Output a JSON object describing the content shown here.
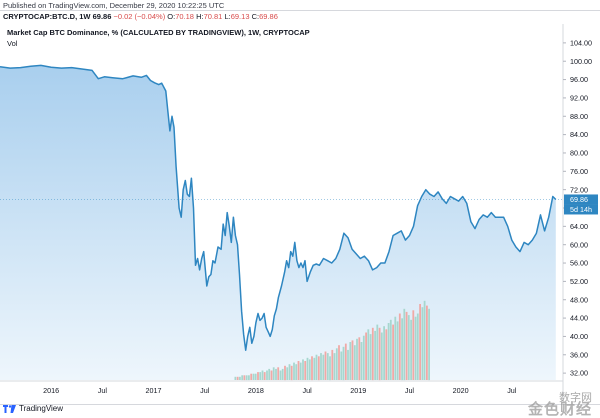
{
  "header": {
    "published": "Published on TradingView.com, December 29, 2020 10:22:25 UTC",
    "symbol": "CRYPTOCAP:BTC.D, 1W",
    "last": "69.86",
    "change": "−0.02 (−0.04%)",
    "o_label": "O:",
    "o_value": "70.18",
    "h_label": "H:",
    "h_value": "70.81",
    "l_label": "L:",
    "l_value": "69.13",
    "c_label": "C:",
    "c_value": "69.86"
  },
  "chart_title": "Market Cap BTC Dominance, % (CALCULATED BY TRADINGVIEW), 1W, CRYPTOCAP",
  "vol_label": "Vol",
  "footer": {
    "brand": "TradingView"
  },
  "watermark": {
    "line1": "数字网",
    "line2": "金色财经"
  },
  "colors": {
    "line": "#2e86c1",
    "fill_top": "#a9cfee",
    "fill_bottom": "#eef6fc",
    "vol_up": "#a7d7cf",
    "vol_down": "#f0a9a6",
    "price_tag": "#2e86c1"
  },
  "chart_data": {
    "type": "area",
    "title": "Market Cap BTC Dominance, % (CALCULATED BY TRADINGVIEW), 1W, CRYPTOCAP",
    "ylabel": "%",
    "ylim": [
      30.5,
      105.5
    ],
    "y_ticks": [
      "104.00",
      "100.00",
      "96.00",
      "92.00",
      "88.00",
      "84.00",
      "80.00",
      "76.00",
      "72.00",
      "68.00",
      "64.00",
      "60.00",
      "56.00",
      "52.00",
      "48.00",
      "44.00",
      "40.00",
      "36.00",
      "32.00"
    ],
    "y_tick_values": [
      104,
      100,
      96,
      92,
      88,
      84,
      80,
      76,
      72,
      68,
      64,
      60,
      56,
      52,
      48,
      44,
      40,
      36,
      32
    ],
    "xlim": [
      2015.5,
      2021.0
    ],
    "x_ticks": [
      {
        "label": "2016",
        "x": 2016.0
      },
      {
        "label": "Jul",
        "x": 2016.5
      },
      {
        "label": "2017",
        "x": 2017.0
      },
      {
        "label": "Jul",
        "x": 2017.5
      },
      {
        "label": "2018",
        "x": 2018.0
      },
      {
        "label": "Jul",
        "x": 2018.5
      },
      {
        "label": "2019",
        "x": 2019.0
      },
      {
        "label": "Jul",
        "x": 2019.5
      },
      {
        "label": "2020",
        "x": 2020.0
      },
      {
        "label": "Jul",
        "x": 2020.5
      }
    ],
    "series": [
      {
        "name": "BTC.D",
        "points": [
          [
            2015.5,
            98.8
          ],
          [
            2015.6,
            98.5
          ],
          [
            2015.7,
            98.6
          ],
          [
            2015.8,
            98.9
          ],
          [
            2015.9,
            99.1
          ],
          [
            2016.0,
            98.7
          ],
          [
            2016.1,
            98.5
          ],
          [
            2016.2,
            98.6
          ],
          [
            2016.3,
            98.3
          ],
          [
            2016.4,
            98.0
          ],
          [
            2016.46,
            96.2
          ],
          [
            2016.52,
            96.6
          ],
          [
            2016.6,
            96.4
          ],
          [
            2016.7,
            96.2
          ],
          [
            2016.8,
            96.8
          ],
          [
            2016.88,
            96.5
          ],
          [
            2016.93,
            96.9
          ],
          [
            2016.97,
            95.8
          ],
          [
            2017.01,
            95.3
          ],
          [
            2017.05,
            94.9
          ],
          [
            2017.08,
            95.2
          ],
          [
            2017.12,
            93.5
          ],
          [
            2017.14,
            89.0
          ],
          [
            2017.16,
            84.8
          ],
          [
            2017.18,
            88.0
          ],
          [
            2017.2,
            85.6
          ],
          [
            2017.22,
            77.0
          ],
          [
            2017.25,
            68.0
          ],
          [
            2017.27,
            66.0
          ],
          [
            2017.29,
            72.0
          ],
          [
            2017.31,
            74.0
          ],
          [
            2017.33,
            71.0
          ],
          [
            2017.35,
            70.5
          ],
          [
            2017.37,
            74.5
          ],
          [
            2017.39,
            68.0
          ],
          [
            2017.41,
            55.5
          ],
          [
            2017.43,
            57.0
          ],
          [
            2017.45,
            54.5
          ],
          [
            2017.47,
            57.0
          ],
          [
            2017.49,
            58.5
          ],
          [
            2017.52,
            51.0
          ],
          [
            2017.54,
            53.0
          ],
          [
            2017.56,
            53.5
          ],
          [
            2017.58,
            56.5
          ],
          [
            2017.6,
            56.0
          ],
          [
            2017.63,
            59.5
          ],
          [
            2017.66,
            59.0
          ],
          [
            2017.68,
            64.5
          ],
          [
            2017.7,
            62.0
          ],
          [
            2017.72,
            67.0
          ],
          [
            2017.74,
            64.0
          ],
          [
            2017.76,
            60.5
          ],
          [
            2017.78,
            66.0
          ],
          [
            2017.8,
            62.0
          ],
          [
            2017.82,
            60.0
          ],
          [
            2017.84,
            53.5
          ],
          [
            2017.86,
            45.5
          ],
          [
            2017.88,
            40.5
          ],
          [
            2017.9,
            37.0
          ],
          [
            2017.92,
            40.0
          ],
          [
            2017.94,
            42.0
          ],
          [
            2017.96,
            38.5
          ],
          [
            2017.98,
            40.0
          ],
          [
            2018.0,
            43.0
          ],
          [
            2018.02,
            45.0
          ],
          [
            2018.04,
            43.5
          ],
          [
            2018.06,
            44.0
          ],
          [
            2018.08,
            45.0
          ],
          [
            2018.1,
            42.0
          ],
          [
            2018.12,
            41.0
          ],
          [
            2018.14,
            40.0
          ],
          [
            2018.16,
            41.5
          ],
          [
            2018.18,
            44.5
          ],
          [
            2018.2,
            46.0
          ],
          [
            2018.22,
            48.5
          ],
          [
            2018.25,
            51.0
          ],
          [
            2018.28,
            54.0
          ],
          [
            2018.3,
            56.5
          ],
          [
            2018.32,
            55.0
          ],
          [
            2018.34,
            58.5
          ],
          [
            2018.36,
            57.5
          ],
          [
            2018.38,
            60.5
          ],
          [
            2018.4,
            56.5
          ],
          [
            2018.42,
            55.0
          ],
          [
            2018.44,
            56.0
          ],
          [
            2018.46,
            55.0
          ],
          [
            2018.48,
            56.5
          ],
          [
            2018.5,
            52.0
          ],
          [
            2018.53,
            54.0
          ],
          [
            2018.56,
            55.5
          ],
          [
            2018.59,
            55.8
          ],
          [
            2018.62,
            55.5
          ],
          [
            2018.66,
            57.0
          ],
          [
            2018.7,
            56.5
          ],
          [
            2018.74,
            56.0
          ],
          [
            2018.78,
            57.0
          ],
          [
            2018.82,
            59.0
          ],
          [
            2018.86,
            62.5
          ],
          [
            2018.9,
            61.5
          ],
          [
            2018.94,
            59.0
          ],
          [
            2018.98,
            58.0
          ],
          [
            2019.02,
            57.0
          ],
          [
            2019.06,
            57.5
          ],
          [
            2019.1,
            56.5
          ],
          [
            2019.14,
            54.5
          ],
          [
            2019.18,
            55.0
          ],
          [
            2019.22,
            56.0
          ],
          [
            2019.26,
            56.0
          ],
          [
            2019.3,
            58.5
          ],
          [
            2019.34,
            62.0
          ],
          [
            2019.38,
            62.5
          ],
          [
            2019.42,
            63.0
          ],
          [
            2019.46,
            61.0
          ],
          [
            2019.5,
            62.0
          ],
          [
            2019.54,
            64.0
          ],
          [
            2019.58,
            68.5
          ],
          [
            2019.62,
            70.5
          ],
          [
            2019.66,
            72.0
          ],
          [
            2019.7,
            71.0
          ],
          [
            2019.74,
            70.5
          ],
          [
            2019.78,
            71.5
          ],
          [
            2019.82,
            70.0
          ],
          [
            2019.86,
            69.0
          ],
          [
            2019.9,
            70.5
          ],
          [
            2019.94,
            70.0
          ],
          [
            2019.98,
            69.5
          ],
          [
            2020.02,
            70.5
          ],
          [
            2020.06,
            69.0
          ],
          [
            2020.1,
            65.0
          ],
          [
            2020.14,
            63.5
          ],
          [
            2020.18,
            65.5
          ],
          [
            2020.22,
            66.5
          ],
          [
            2020.26,
            66.0
          ],
          [
            2020.3,
            67.0
          ],
          [
            2020.34,
            66.0
          ],
          [
            2020.38,
            66.0
          ],
          [
            2020.42,
            66.0
          ],
          [
            2020.46,
            64.0
          ],
          [
            2020.5,
            61.0
          ],
          [
            2020.54,
            59.5
          ],
          [
            2020.58,
            58.5
          ],
          [
            2020.62,
            60.5
          ],
          [
            2020.66,
            60.0
          ],
          [
            2020.7,
            61.0
          ],
          [
            2020.74,
            62.5
          ],
          [
            2020.78,
            66.5
          ],
          [
            2020.82,
            63.0
          ],
          [
            2020.86,
            66.0
          ],
          [
            2020.9,
            70.5
          ],
          [
            2020.93,
            69.86
          ]
        ]
      }
    ],
    "volume": {
      "start_x": 2017.8,
      "step": 0.022,
      "values": [
        2,
        2,
        2,
        3,
        3,
        3,
        3,
        4,
        4,
        4,
        5,
        5,
        6,
        5,
        6,
        7,
        6,
        8,
        7,
        8,
        6,
        7,
        9,
        8,
        10,
        9,
        11,
        10,
        12,
        11,
        13,
        12,
        14,
        13,
        15,
        14,
        16,
        15,
        17,
        16,
        18,
        17,
        15,
        19,
        17,
        20,
        22,
        18,
        21,
        23,
        19,
        24,
        25,
        22,
        26,
        27,
        24,
        28,
        30,
        32,
        29,
        33,
        31,
        35,
        33,
        30,
        34,
        32,
        36,
        38,
        35,
        40,
        37,
        42,
        39,
        45,
        43,
        41,
        38,
        44,
        40,
        42,
        48,
        46,
        50,
        47,
        45
      ],
      "ymax": 60
    },
    "last_value": "69.86",
    "last_tag_sub": "5d 14h"
  }
}
